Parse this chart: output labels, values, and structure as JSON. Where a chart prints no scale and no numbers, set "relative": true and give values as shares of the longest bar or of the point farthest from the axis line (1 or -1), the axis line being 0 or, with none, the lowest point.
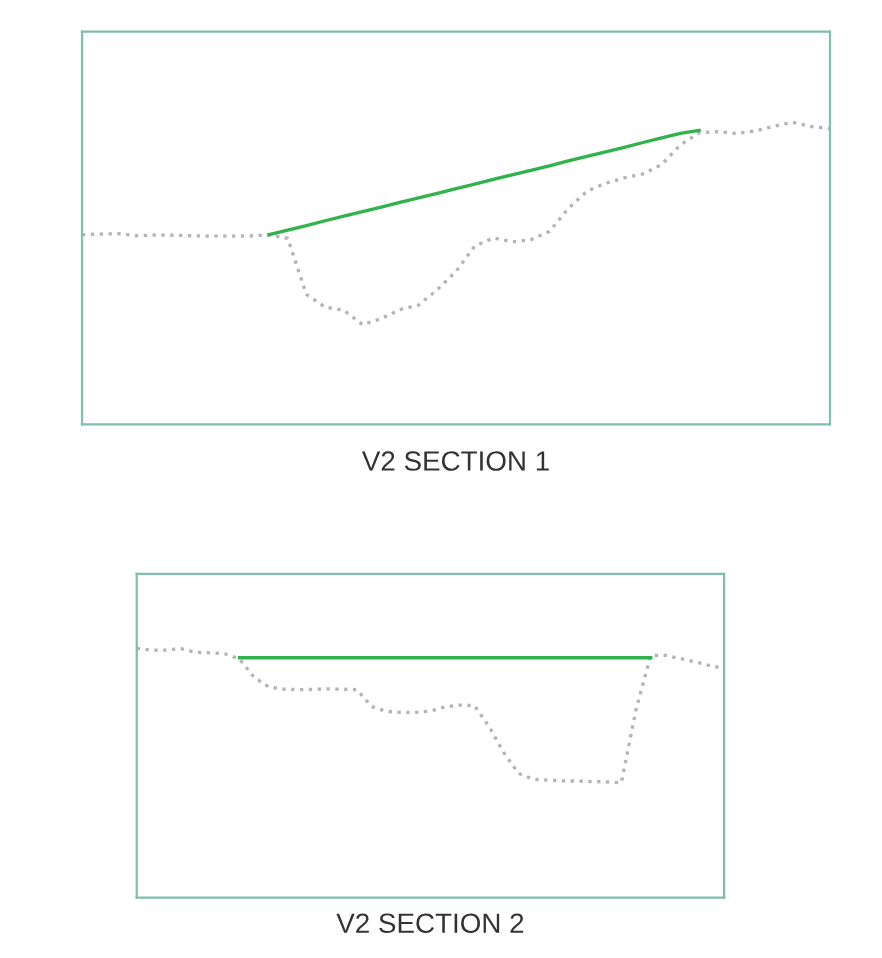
{
  "chart_data": [
    {
      "type": "line",
      "title": "V2 SECTION 1",
      "relative": true,
      "categories": [
        null,
        null,
        null,
        null,
        null,
        null,
        null,
        null,
        null,
        null,
        null,
        null,
        null,
        null,
        null,
        null,
        null,
        null,
        null,
        null,
        null,
        null,
        null,
        null,
        null,
        null,
        null,
        null,
        null,
        null,
        null,
        null,
        null,
        null,
        null,
        null,
        null,
        null,
        null,
        null,
        null
      ],
      "series": [
        {
          "color": "#b4b4b4",
          "line_style": "dotted",
          "values": [
            0.628,
            0.63,
            0.631,
            0.624,
            0.627,
            0.626,
            0.624,
            0.623,
            0.623,
            0.624,
            0.627,
            0.616,
            0.43,
            0.388,
            0.378,
            0.33,
            0.35,
            0.38,
            0.395,
            0.446,
            0.506,
            0.59,
            0.617,
            0.604,
            0.611,
            0.639,
            0.714,
            0.772,
            0.798,
            0.816,
            0.829,
            0.86,
            0.925,
            0.965,
            0.969,
            0.963,
            0.971,
            0.987,
            1.0,
            0.986,
            0.979
          ]
        },
        {
          "color": "#2fb34a",
          "line_style": "solid",
          "values": [
            null,
            null,
            null,
            null,
            null,
            null,
            null,
            null,
            null,
            null,
            0.628,
            0.643,
            0.658,
            0.674,
            0.689,
            0.704,
            0.719,
            0.735,
            0.75,
            0.765,
            0.78,
            0.795,
            0.811,
            0.826,
            0.841,
            0.856,
            0.872,
            0.887,
            0.902,
            0.917,
            0.933,
            0.948,
            0.963,
            0.973,
            null,
            null,
            null,
            null,
            null,
            null,
            null
          ]
        }
      ]
    },
    {
      "type": "line",
      "title": "V2 SECTION 2",
      "relative": true,
      "categories": [
        null,
        null,
        null,
        null,
        null,
        null,
        null,
        null,
        null,
        null,
        null,
        null,
        null,
        null,
        null,
        null,
        null,
        null,
        null,
        null,
        null,
        null,
        null,
        null,
        null,
        null,
        null,
        null,
        null,
        null,
        null,
        null,
        null,
        null,
        null,
        null,
        null,
        null,
        null,
        null,
        null
      ],
      "series": [
        {
          "color": "#b4b4b4",
          "line_style": "dotted",
          "values": [
            1.0,
            0.994,
            0.994,
            1.0,
            0.985,
            0.983,
            0.979,
            0.958,
            0.884,
            0.846,
            0.837,
            0.835,
            0.836,
            0.838,
            0.837,
            0.835,
            0.767,
            0.748,
            0.744,
            0.744,
            0.749,
            0.766,
            0.773,
            0.771,
            0.686,
            0.582,
            0.499,
            0.475,
            0.472,
            0.469,
            0.468,
            0.466,
            0.465,
            0.461,
            0.755,
            0.972,
            0.973,
            0.96,
            0.947,
            0.932,
            0.92
          ]
        },
        {
          "color": "#2fb34a",
          "line_style": "solid",
          "values": [
            null,
            null,
            null,
            null,
            null,
            null,
            null,
            0.963,
            0.963,
            0.963,
            0.963,
            0.963,
            0.963,
            0.963,
            0.963,
            0.963,
            0.963,
            0.963,
            0.963,
            0.963,
            0.963,
            0.963,
            0.963,
            0.963,
            0.963,
            0.963,
            0.963,
            0.963,
            0.963,
            0.963,
            0.963,
            0.963,
            0.963,
            0.963,
            0.963,
            0.963,
            null,
            null,
            null,
            null,
            null
          ]
        }
      ]
    }
  ]
}
